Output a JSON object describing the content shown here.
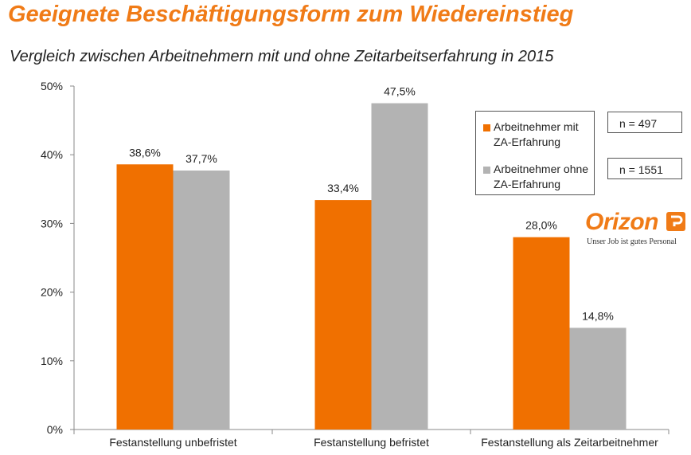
{
  "header": {
    "title": "Geeignete Beschäftigungsform zum Wiedereinstieg",
    "subtitle": "Vergleich zwischen Arbeitnehmern mit und ohne Zeitarbeitserfahrung in 2015"
  },
  "chart_data": {
    "type": "bar",
    "categories": [
      "Festanstellung unbefristet",
      "Festanstellung befristet",
      "Festanstellung als Zeitarbeitnehmer"
    ],
    "series": [
      {
        "name": "Arbeitnehmer mit\nZA-Erfahrung",
        "values": [
          38.6,
          33.4,
          28.0
        ],
        "labels": [
          "38,6%",
          "33,4%",
          "28,0%"
        ],
        "color": "#f07000"
      },
      {
        "name": "Arbeitnehmer ohne\nZA-Erfahrung",
        "values": [
          37.7,
          47.5,
          14.8
        ],
        "labels": [
          "37,7%",
          "47,5%",
          "14,8%"
        ],
        "color": "#b3b3b3"
      }
    ],
    "ylim": [
      0,
      50
    ],
    "yticks": [
      "0%",
      "10%",
      "20%",
      "30%",
      "40%",
      "50%"
    ],
    "grid": false,
    "legend_position": "top-right"
  },
  "sample_sizes": [
    "n = 497",
    "n = 1551"
  ],
  "logo": {
    "name": "Orizon",
    "tagline": "Unser Job ist gutes Personal",
    "color": "#f07b17"
  }
}
